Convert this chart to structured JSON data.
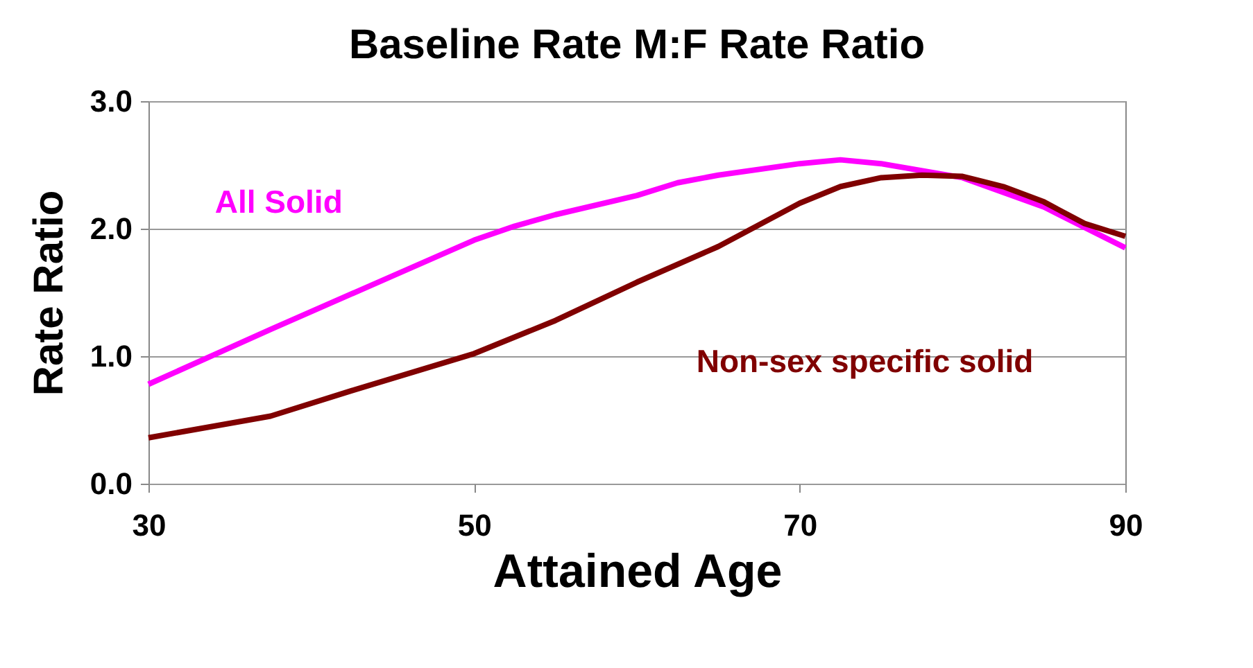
{
  "chart_data": {
    "type": "line",
    "title": "Baseline Rate M:F Rate Ratio",
    "xlabel": "Attained Age",
    "ylabel": "Rate Ratio",
    "xlim": [
      30,
      90
    ],
    "xticks": [
      30,
      50,
      70,
      90
    ],
    "ylim": [
      0,
      3
    ],
    "yticks": [
      {
        "value": 0,
        "label": "0.0"
      },
      {
        "value": 1,
        "label": "1.0"
      },
      {
        "value": 2,
        "label": "2.0"
      },
      {
        "value": 3,
        "label": "3.0"
      }
    ],
    "grid": "y",
    "legend": false,
    "marker": "none",
    "line_style": "solid",
    "series": [
      {
        "name": "All Solid",
        "color": "#ff00ff",
        "x": [
          30,
          37.5,
          45,
          50,
          52.5,
          55,
          60,
          62.5,
          65,
          70,
          72.5,
          75,
          80,
          85,
          90
        ],
        "values": [
          0.78,
          1.21,
          1.63,
          1.91,
          2.02,
          2.11,
          2.26,
          2.36,
          2.42,
          2.51,
          2.54,
          2.51,
          2.4,
          2.17,
          1.85
        ]
      },
      {
        "name": "Non-sex specific solid",
        "color": "#800000",
        "x": [
          30,
          37.5,
          42.5,
          50,
          55,
          60,
          65,
          70,
          72.5,
          75,
          77.5,
          80,
          82.5,
          85,
          87.5,
          90
        ],
        "values": [
          0.36,
          0.53,
          0.73,
          1.02,
          1.28,
          1.58,
          1.86,
          2.2,
          2.33,
          2.4,
          2.42,
          2.41,
          2.33,
          2.21,
          2.04,
          1.94
        ]
      }
    ]
  }
}
